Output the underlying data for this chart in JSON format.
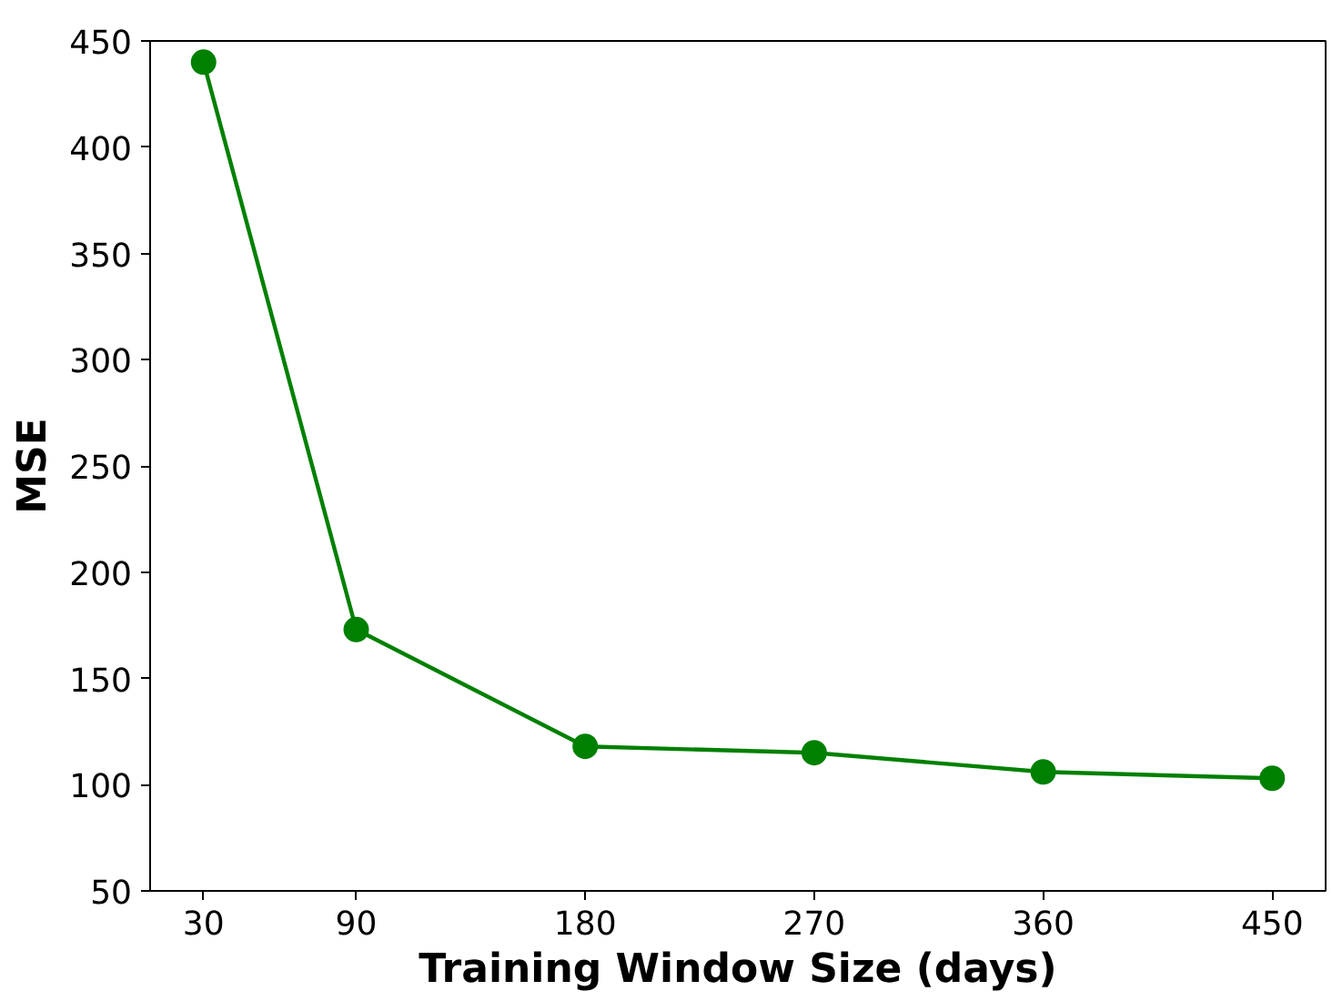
{
  "chart_data": {
    "type": "line",
    "xlabel": "Training Window Size (days)",
    "ylabel": "MSE",
    "x": [
      30,
      90,
      180,
      270,
      360,
      450
    ],
    "series": [
      {
        "color": "#008000",
        "values": [
          440,
          173,
          118,
          115,
          106,
          103
        ]
      }
    ],
    "xlim": [
      9,
      471
    ],
    "ylim": [
      50,
      450
    ],
    "xticks": [
      30,
      90,
      180,
      270,
      360,
      450
    ],
    "yticks": [
      50,
      100,
      150,
      200,
      250,
      300,
      350,
      400,
      450
    ],
    "marker": "circle",
    "line_style": "solid",
    "grid": false
  }
}
